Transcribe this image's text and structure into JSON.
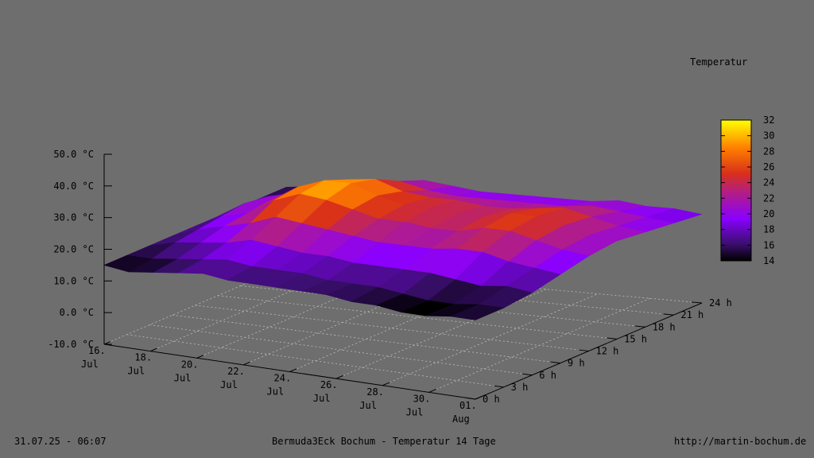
{
  "footer": {
    "timestamp": "31.07.25 - 06:07",
    "title": "Bermuda3Eck Bochum - Temperatur 14 Tage",
    "url": "http://martin-bochum.de"
  },
  "chart_data": {
    "type": "surface3d",
    "colorbar": {
      "title": "Temperatur",
      "min": 14,
      "max": 32,
      "ticks": [
        "32",
        "30",
        "28",
        "26",
        "24",
        "22",
        "20",
        "18",
        "16",
        "14"
      ]
    },
    "z_axis": {
      "range": [
        -10,
        50
      ],
      "tick_values": [
        50,
        40,
        30,
        20,
        10,
        0,
        -10
      ],
      "tick_labels": [
        "50.0 °C",
        "40.0 °C",
        "30.0 °C",
        "20.0 °C",
        "10.0 °C",
        "0.0 °C",
        "-10.0 °C"
      ]
    },
    "x_axis": {
      "tick_labels": [
        [
          "16.",
          "Jul"
        ],
        [
          "18.",
          "Jul"
        ],
        [
          "20.",
          "Jul"
        ],
        [
          "22.",
          "Jul"
        ],
        [
          "24.",
          "Jul"
        ],
        [
          "26.",
          "Jul"
        ],
        [
          "28.",
          "Jul"
        ],
        [
          "30.",
          "Jul"
        ],
        [
          "01.",
          "Aug"
        ]
      ],
      "tick_day_index": [
        0,
        2,
        4,
        6,
        8,
        10,
        12,
        14,
        16
      ]
    },
    "y_axis": {
      "tick_labels": [
        "0 h",
        "3 h",
        "6 h",
        "9 h",
        "12 h",
        "15 h",
        "18 h",
        "21 h",
        "24 h"
      ],
      "tick_values": [
        0,
        3,
        6,
        9,
        12,
        15,
        18,
        21,
        24
      ]
    },
    "grid": true,
    "surface_hours": [
      0,
      3,
      6,
      9,
      12,
      15,
      18,
      21,
      24
    ],
    "surface_days": [
      "16.07",
      "17.07",
      "18.07",
      "19.07",
      "20.07",
      "21.07",
      "22.07",
      "23.07",
      "24.07",
      "25.07",
      "26.07",
      "27.07",
      "28.07",
      "29.07",
      "30.07",
      "31.07"
    ],
    "surface_values": [
      [
        15,
        15,
        15,
        15,
        15,
        15,
        15,
        15,
        15
      ],
      [
        14,
        15,
        17,
        18,
        19,
        20,
        19,
        17,
        16
      ],
      [
        15,
        16,
        18,
        20,
        21,
        22,
        21,
        19,
        17
      ],
      [
        16,
        17,
        19,
        22,
        26,
        27,
        25,
        21,
        19
      ],
      [
        17,
        18,
        21,
        25,
        29,
        30,
        27,
        23,
        20
      ],
      [
        16,
        17,
        20,
        24,
        28,
        30,
        28,
        24,
        21
      ],
      [
        16,
        17,
        19,
        23,
        26,
        27,
        25,
        22,
        20
      ],
      [
        16,
        17,
        19,
        22,
        24,
        25,
        24,
        21,
        19
      ],
      [
        16,
        16,
        18,
        21,
        24,
        25,
        24,
        21,
        19
      ],
      [
        16,
        16,
        18,
        21,
        23,
        24,
        23,
        21,
        19
      ],
      [
        15,
        16,
        18,
        21,
        23,
        24,
        23,
        21,
        19
      ],
      [
        15,
        15,
        18,
        22,
        25,
        26,
        24,
        21,
        19
      ],
      [
        14,
        14,
        17,
        22,
        25,
        26,
        25,
        22,
        20
      ],
      [
        14,
        14,
        16,
        20,
        23,
        24,
        23,
        21,
        19
      ],
      [
        15,
        15,
        17,
        19,
        21,
        22,
        21,
        20,
        19
      ],
      [
        15,
        15,
        16,
        18,
        20,
        21,
        20,
        19,
        18
      ]
    ]
  }
}
